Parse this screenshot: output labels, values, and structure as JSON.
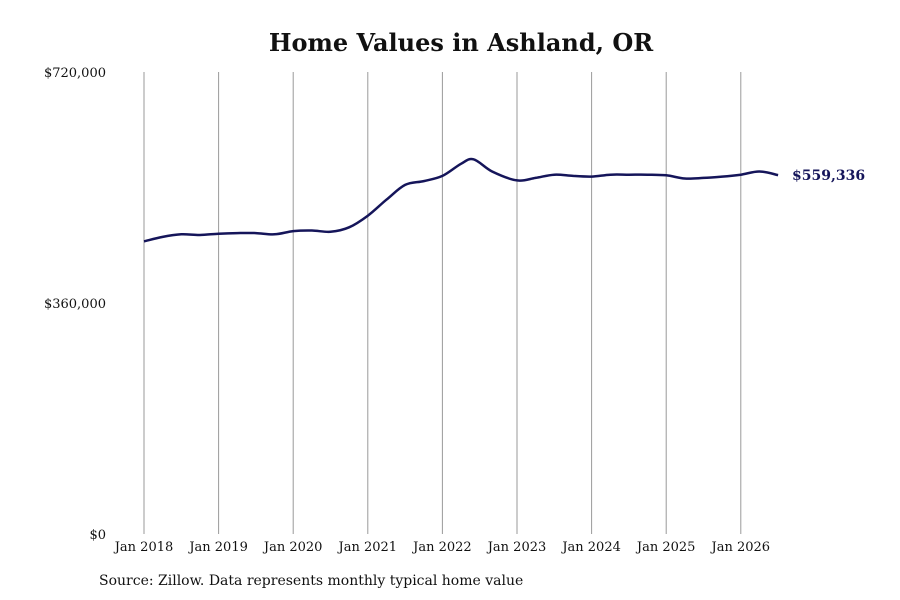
{
  "chart_data": {
    "type": "line",
    "title": "Home Values in Ashland, OR",
    "xlabel": "",
    "ylabel": "",
    "ylim": [
      0,
      720000
    ],
    "y_ticks": [
      {
        "value": 0,
        "label": "$0"
      },
      {
        "value": 360000,
        "label": "$360,000"
      },
      {
        "value": 720000,
        "label": "$720,000"
      }
    ],
    "x_ticks": [
      {
        "value": "2018-01",
        "label": "Jan 2018"
      },
      {
        "value": "2019-01",
        "label": "Jan 2019"
      },
      {
        "value": "2020-01",
        "label": "Jan 2020"
      },
      {
        "value": "2021-01",
        "label": "Jan 2021"
      },
      {
        "value": "2022-01",
        "label": "Jan 2022"
      },
      {
        "value": "2023-01",
        "label": "Jan 2023"
      },
      {
        "value": "2024-01",
        "label": "Jan 2024"
      },
      {
        "value": "2025-01",
        "label": "Jan 2025"
      },
      {
        "value": "2026-01",
        "label": "Jan 2026"
      }
    ],
    "grid": "vertical",
    "series": [
      {
        "color": "#15155a",
        "x": [
          "2018-01",
          "2018-04",
          "2018-07",
          "2018-10",
          "2019-01",
          "2019-04",
          "2019-07",
          "2019-10",
          "2020-01",
          "2020-04",
          "2020-07",
          "2020-10",
          "2021-01",
          "2021-04",
          "2021-07",
          "2021-10",
          "2022-01",
          "2022-04",
          "2022-06",
          "2022-09",
          "2023-01",
          "2023-04",
          "2023-07",
          "2023-10",
          "2024-01",
          "2024-04",
          "2024-07",
          "2024-10",
          "2025-01",
          "2025-04",
          "2025-07",
          "2025-10",
          "2026-01",
          "2026-04",
          "2026-07"
        ],
        "values": [
          456000,
          463000,
          467000,
          466000,
          468000,
          469000,
          469000,
          467000,
          472000,
          473000,
          471000,
          478000,
          496000,
          521000,
          544000,
          550000,
          558000,
          577000,
          584000,
          565000,
          551000,
          555000,
          560000,
          558000,
          557000,
          560000,
          560000,
          560000,
          559000,
          554000,
          555000,
          557000,
          560000,
          565000,
          559336
        ]
      }
    ],
    "end_label": "$559,336"
  },
  "source_note": "Source: Zillow. Data represents monthly typical home value"
}
